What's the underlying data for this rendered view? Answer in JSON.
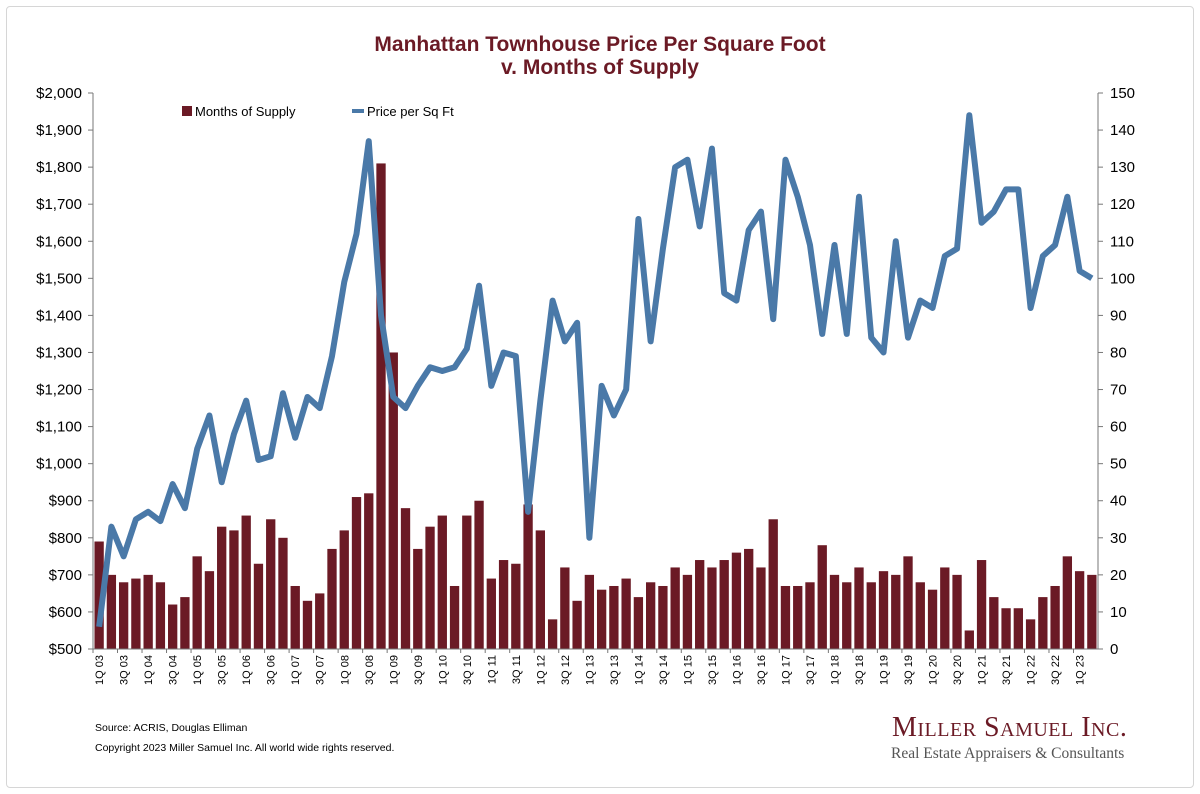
{
  "title_line1": "Manhattan Townhouse Price Per Square Foot",
  "title_line2": "v. Months of Supply",
  "source": "Source: ACRIS, Douglas Elliman",
  "copyright": "Copyright 2023 Miller Samuel Inc.  All world wide rights reserved.",
  "brand": "Miller Samuel Inc.",
  "tagline": "Real Estate Appraisers & Consultants",
  "colors": {
    "bars": "#6b1a25",
    "line": "#4a79a8",
    "title": "#6b1a25"
  },
  "chart_data": {
    "type": "bar",
    "title": "Manhattan Townhouse Price Per Square Foot v. Months of Supply",
    "left_axis": {
      "min": 500,
      "max": 2000,
      "step": 100,
      "tick_labels": [
        "$500",
        "$600",
        "$700",
        "$800",
        "$900",
        "$1,000",
        "$1,100",
        "$1,200",
        "$1,300",
        "$1,400",
        "$1,500",
        "$1,600",
        "$1,700",
        "$1,800",
        "$1,900",
        "$2,000"
      ]
    },
    "right_axis": {
      "min": 0,
      "max": 150,
      "step": 10,
      "tick_labels": [
        "0",
        "10",
        "20",
        "30",
        "40",
        "50",
        "60",
        "70",
        "80",
        "90",
        "100",
        "110",
        "120",
        "130",
        "140",
        "150"
      ]
    },
    "x_tick_labels": [
      "1Q 03",
      "3Q 03",
      "1Q 04",
      "3Q 04",
      "1Q 05",
      "3Q 05",
      "1Q 06",
      "3Q 06",
      "1Q 07",
      "3Q 07",
      "1Q 08",
      "3Q 08",
      "1Q 09",
      "3Q 09",
      "1Q 10",
      "3Q 10",
      "1Q 11",
      "3Q 11",
      "1Q 12",
      "3Q 12",
      "1Q 13",
      "3Q 13",
      "1Q 14",
      "3Q 14",
      "1Q 15",
      "3Q 15",
      "1Q 16",
      "3Q 16",
      "1Q 17",
      "3Q 17",
      "1Q 18",
      "3Q 18",
      "1Q 19",
      "3Q 19",
      "1Q 20",
      "3Q 20",
      "1Q 21",
      "3Q 21",
      "1Q 22",
      "3Q 22",
      "1Q 23"
    ],
    "legend_position": "top-left",
    "grid": false,
    "series": [
      {
        "name": "Months of Supply",
        "type": "bar",
        "axis": "right",
        "values": [
          29,
          20,
          18,
          19,
          20,
          18,
          12,
          14,
          25,
          21,
          33,
          32,
          36,
          23,
          35,
          30,
          17,
          13,
          15,
          27,
          32,
          41,
          42,
          131,
          80,
          38,
          27,
          33,
          36,
          17,
          36,
          40,
          19,
          24,
          23,
          39,
          32,
          8,
          22,
          13,
          20,
          16,
          17,
          19,
          14,
          18,
          17,
          22,
          20,
          24,
          22,
          24,
          26,
          27,
          22,
          35,
          17,
          17,
          18,
          28,
          20,
          18,
          22,
          18,
          21,
          20,
          25,
          18,
          16,
          22,
          20,
          5,
          24,
          14,
          11,
          11,
          8,
          14,
          17,
          25,
          21,
          20
        ],
        "fill": "#6b1a25"
      },
      {
        "name": "Price per Sq Ft",
        "type": "line",
        "axis": "left",
        "values": [
          560,
          830,
          750,
          850,
          870,
          845,
          945,
          880,
          1040,
          1130,
          950,
          1080,
          1170,
          1010,
          1020,
          1190,
          1070,
          1180,
          1150,
          1290,
          1490,
          1620,
          1870,
          1400,
          1180,
          1150,
          1210,
          1260,
          1250,
          1260,
          1310,
          1480,
          1210,
          1300,
          1290,
          870,
          1170,
          1440,
          1330,
          1380,
          800,
          1210,
          1130,
          1200,
          1660,
          1330,
          1580,
          1800,
          1820,
          1640,
          1850,
          1460,
          1440,
          1630,
          1680,
          1390,
          1820,
          1720,
          1590,
          1350,
          1590,
          1350,
          1720,
          1340,
          1300,
          1600,
          1340,
          1440,
          1420,
          1560,
          1580,
          1940,
          1650,
          1680,
          1740,
          1740,
          1420,
          1560,
          1590,
          1720,
          1520,
          1500
        ],
        "color": "#4a79a8"
      }
    ]
  }
}
